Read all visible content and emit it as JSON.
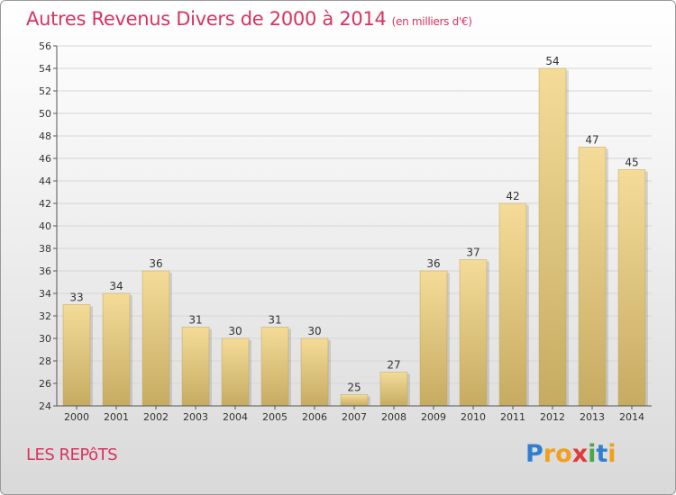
{
  "title": "Autres Revenus Divers de 2000 à 2014",
  "subtitle": "(en milliers d'€)",
  "commune": "LES REPôTS",
  "brand": {
    "letters": [
      "P",
      "r",
      "o",
      "x",
      "i",
      "t",
      "i"
    ],
    "colors": [
      "#2f7fd0",
      "#f0a020",
      "#f0a020",
      "#e03a3a",
      "#4aa84a",
      "#2f7fd0",
      "#f0a020"
    ]
  },
  "colors": {
    "title": "#d9325f",
    "bar_light": "#f4dc98",
    "bar_dark": "#c6ab62",
    "bar_shadow": "#a89458"
  },
  "chart_data": {
    "type": "bar",
    "categories": [
      "2000",
      "2001",
      "2002",
      "2003",
      "2004",
      "2005",
      "2006",
      "2007",
      "2008",
      "2009",
      "2010",
      "2011",
      "2012",
      "2013",
      "2014"
    ],
    "values": [
      33,
      34,
      36,
      31,
      30,
      31,
      30,
      25,
      27,
      36,
      37,
      42,
      54,
      47,
      45
    ],
    "ylim": [
      24,
      56
    ],
    "yticks": [
      24,
      26,
      28,
      30,
      32,
      34,
      36,
      38,
      40,
      42,
      44,
      46,
      48,
      50,
      52,
      54,
      56
    ],
    "grid": "horizontal",
    "title": "Autres Revenus Divers de 2000 à 2014",
    "subtitle": "(en milliers d'€)",
    "xlabel": "",
    "ylabel": ""
  }
}
